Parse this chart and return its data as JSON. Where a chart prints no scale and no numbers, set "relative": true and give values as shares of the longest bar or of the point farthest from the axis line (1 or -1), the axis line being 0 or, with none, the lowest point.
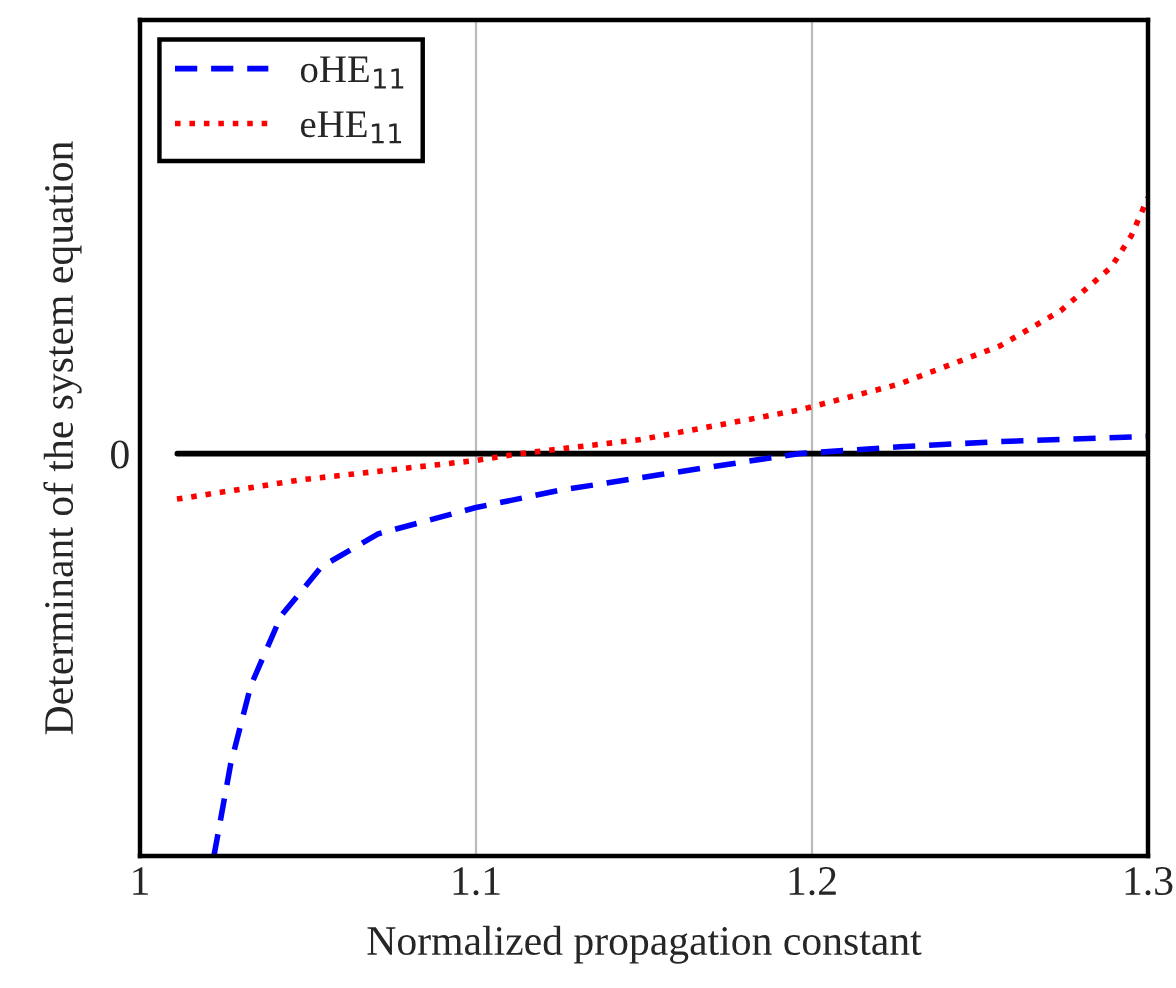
{
  "chart_data": {
    "type": "line",
    "xlabel": "Normalized propagation constant",
    "ylabel": "Determinant of the system equation",
    "relative": true,
    "xlim": [
      1,
      1.3
    ],
    "xticks": [
      1,
      1.1,
      1.2,
      1.3
    ],
    "grid": "x",
    "legend": "top left",
    "ref_lines": [
      {
        "axis": "y",
        "value": 0,
        "label": "0",
        "color": "#000000"
      }
    ],
    "series": [
      {
        "name": "oHE$_{11}$",
        "color": "#0000ff",
        "line_style": "dashed",
        "x": [
          1.022,
          1.027,
          1.033,
          1.042,
          1.054,
          1.071,
          1.1,
          1.125,
          1.155,
          1.196,
          1.226,
          1.256,
          1.3
        ],
        "values": [
          -1.0,
          -0.771,
          -0.576,
          -0.403,
          -0.281,
          -0.199,
          -0.134,
          -0.091,
          -0.052,
          0,
          0.017,
          0.03,
          0.043
        ]
      },
      {
        "name": "eHE$_{11}$",
        "color": "#ff0000",
        "line_style": "dotted",
        "x": [
          1.011,
          1.048,
          1.1,
          1.113,
          1.149,
          1.196,
          1.226,
          1.256,
          1.274,
          1.289,
          1.295,
          1.3
        ],
        "values": [
          -0.113,
          -0.065,
          -0.017,
          0,
          0.035,
          0.108,
          0.173,
          0.268,
          0.355,
          0.463,
          0.541,
          0.636
        ]
      }
    ]
  }
}
